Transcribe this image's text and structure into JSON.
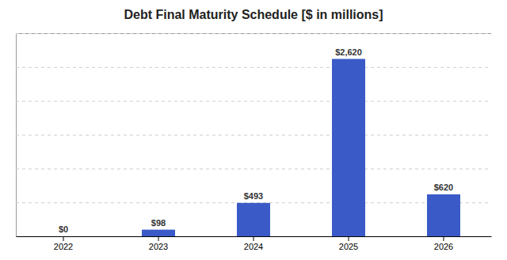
{
  "chart_data": {
    "type": "bar",
    "title": "Debt Final Maturity Schedule [$ in millions]",
    "categories": [
      "2022",
      "2023",
      "2024",
      "2025",
      "2026"
    ],
    "values": [
      0,
      98,
      493,
      2620,
      620
    ],
    "value_labels": [
      "$0",
      "$98",
      "$493",
      "$2,620",
      "$620"
    ],
    "data_labels": true,
    "color": "#3A5BC7",
    "ylim": [
      0,
      3000
    ],
    "yticks": [
      0,
      500,
      1000,
      1500,
      2000,
      2500,
      3000
    ],
    "grid": true,
    "tick_labels": "x"
  }
}
